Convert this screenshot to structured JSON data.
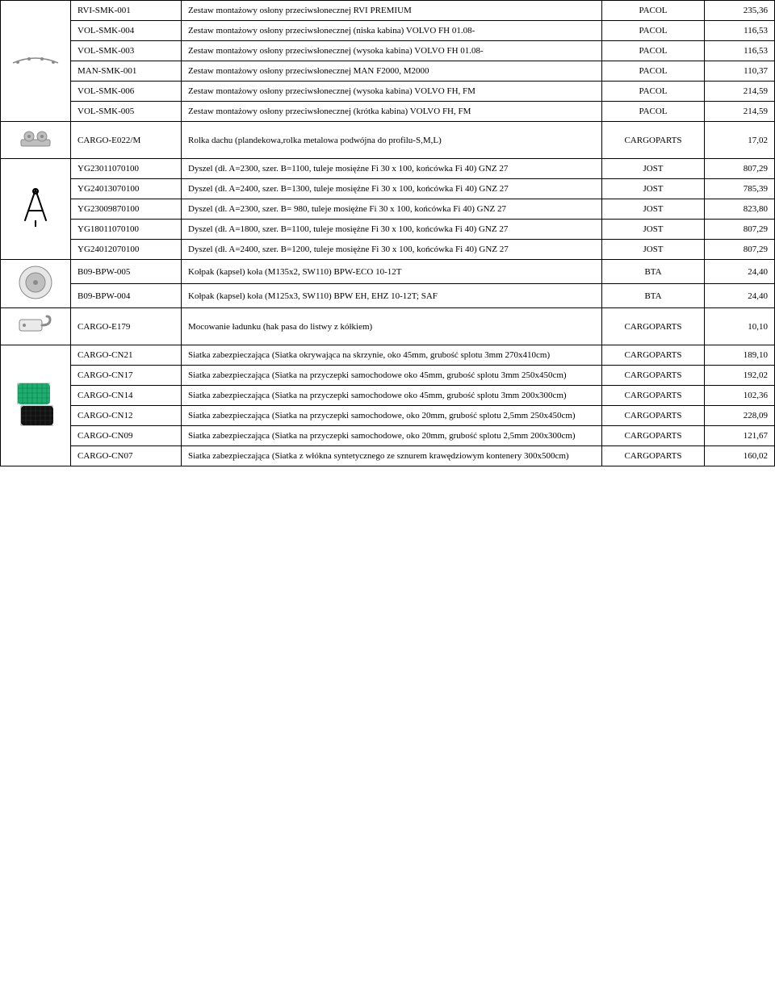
{
  "rows": [
    {
      "code": "RVI-SMK-001",
      "desc": "Zestaw montażowy osłony przeciwsłonecznej RVI PREMIUM",
      "brand": "PACOL",
      "price": "235,36"
    },
    {
      "code": "VOL-SMK-004",
      "desc": "Zestaw montażowy osłony przeciwsłonecznej (niska kabina) VOLVO FH 01.08-",
      "brand": "PACOL",
      "price": "116,53"
    },
    {
      "code": "VOL-SMK-003",
      "desc": "Zestaw montażowy osłony przeciwsłonecznej (wysoka kabina) VOLVO FH 01.08-",
      "brand": "PACOL",
      "price": "116,53"
    },
    {
      "code": "MAN-SMK-001",
      "desc": "Zestaw montażowy osłony przeciwsłonecznej MAN F2000, M2000",
      "brand": "PACOL",
      "price": "110,37"
    },
    {
      "code": "VOL-SMK-006",
      "desc": "Zestaw montażowy osłony przeciwsłonecznej (wysoka kabina) VOLVO FH, FM",
      "brand": "PACOL",
      "price": "214,59"
    },
    {
      "code": "VOL-SMK-005",
      "desc": "Zestaw montażowy osłony przeciwsłonecznej (krótka kabina) VOLVO FH, FM",
      "brand": "PACOL",
      "price": "214,59"
    },
    {
      "code": "CARGO-E022/M",
      "desc": "Rolka dachu (plandekowa,rolka metalowa podwójna do profilu-S,M,L)",
      "brand": "CARGOPARTS",
      "price": "17,02"
    },
    {
      "code": "YG23011070100",
      "desc": "Dyszel (dł. A=2300, szer. B=1100, tuleje mosiężne Fi 30 x 100, końcówka Fi 40) GNZ 27",
      "brand": "JOST",
      "price": "807,29"
    },
    {
      "code": "YG24013070100",
      "desc": "Dyszel (dł. A=2400, szer. B=1300, tuleje mosiężne Fi 30 x 100, końcówka Fi 40) GNZ 27",
      "brand": "JOST",
      "price": "785,39"
    },
    {
      "code": "YG23009870100",
      "desc": "Dyszel (dł. A=2300, szer. B= 980, tuleje mosiężne Fi 30 x 100, końcówka Fi 40) GNZ 27",
      "brand": "JOST",
      "price": "823,80"
    },
    {
      "code": "YG18011070100",
      "desc": "Dyszel (dł. A=1800, szer. B=1100, tuleje mosiężne Fi 30 x 100, końcówka Fi 40) GNZ 27",
      "brand": "JOST",
      "price": "807,29"
    },
    {
      "code": "YG24012070100",
      "desc": "Dyszel (dł. A=2400, szer. B=1200, tuleje mosiężne Fi 30 x 100, końcówka Fi 40) GNZ 27",
      "brand": "JOST",
      "price": "807,29"
    },
    {
      "code": "B09-BPW-005",
      "desc": "Kołpak (kapsel) koła (M135x2, SW110) BPW-ECO 10-12T",
      "brand": "BTA",
      "price": "24,40"
    },
    {
      "code": "B09-BPW-004",
      "desc": "Kołpak (kapsel) koła (M125x3, SW110) BPW EH, EHZ 10-12T; SAF",
      "brand": "BTA",
      "price": "24,40"
    },
    {
      "code": "CARGO-E179",
      "desc": "Mocowanie ładunku (hak pasa do listwy z kółkiem)",
      "brand": "CARGOPARTS",
      "price": "10,10"
    },
    {
      "code": "CARGO-CN21",
      "desc": "Siatka zabezpieczająca (Siatka okrywająca na skrzynie, oko 45mm, grubość splotu 3mm 270x410cm)",
      "brand": "CARGOPARTS",
      "price": "189,10"
    },
    {
      "code": "CARGO-CN17",
      "desc": "Siatka zabezpieczająca (Siatka na przyczepki samochodowe oko 45mm, grubość splotu 3mm 250x450cm)",
      "brand": "CARGOPARTS",
      "price": "192,02"
    },
    {
      "code": "CARGO-CN14",
      "desc": "Siatka zabezpieczająca (Siatka na przyczepki samochodowe oko 45mm, grubość splotu 3mm 200x300cm)",
      "brand": "CARGOPARTS",
      "price": "102,36"
    },
    {
      "code": "CARGO-CN12",
      "desc": "Siatka zabezpieczająca (Siatka na przyczepki samochodowe, oko 20mm, grubość splotu 2,5mm 250x450cm)",
      "brand": "CARGOPARTS",
      "price": "228,09"
    },
    {
      "code": "CARGO-CN09",
      "desc": "Siatka zabezpieczająca (Siatka na przyczepki samochodowe, oko 20mm, grubość splotu 2,5mm 200x300cm)",
      "brand": "CARGOPARTS",
      "price": "121,67"
    },
    {
      "code": "CARGO-CN07",
      "desc": "Siatka zabezpieczająca (Siatka z włókna syntetycznego ze sznurem krawędziowym kontenery 300x500cm)",
      "brand": "CARGOPARTS",
      "price": "160,02"
    }
  ],
  "groups": [
    {
      "start": 0,
      "span": 6,
      "icon": "bracket"
    },
    {
      "start": 6,
      "span": 1,
      "icon": "roller"
    },
    {
      "start": 7,
      "span": 5,
      "icon": "aframe"
    },
    {
      "start": 12,
      "span": 2,
      "icon": "hubcap"
    },
    {
      "start": 14,
      "span": 1,
      "icon": "hook"
    },
    {
      "start": 15,
      "span": 6,
      "icon": "net"
    }
  ],
  "icons": {
    "bracket": {
      "type": "svg",
      "w": 60,
      "h": 24,
      "bg": "#ffffff"
    },
    "roller": {
      "type": "svg",
      "w": 44,
      "h": 30,
      "bg": "#ffffff"
    },
    "aframe": {
      "type": "svg",
      "w": 34,
      "h": 50,
      "bg": "#ffffff"
    },
    "hubcap": {
      "type": "svg",
      "w": 44,
      "h": 44,
      "bg": "#ffffff"
    },
    "hook": {
      "type": "svg",
      "w": 48,
      "h": 30,
      "bg": "#ffffff"
    },
    "net": {
      "type": "svg",
      "w": 48,
      "h": 40,
      "bg": "#ffffff"
    }
  },
  "colors": {
    "border": "#000000",
    "text": "#000000",
    "net_green": "#1fae6f",
    "net_black": "#111111",
    "metal": "#bfbfbf",
    "metal_dark": "#8a8a8a"
  }
}
